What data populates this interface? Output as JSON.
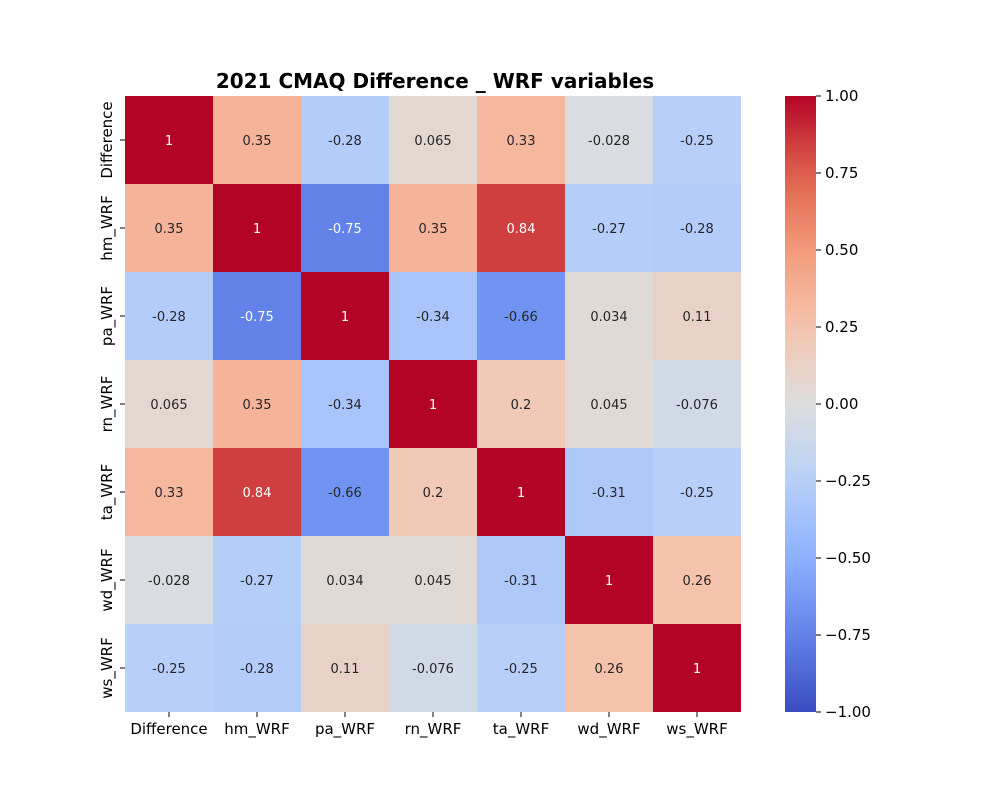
{
  "chart_data": {
    "type": "heatmap",
    "title": "2021 CMAQ Difference _ WRF variables",
    "xlabel": "",
    "ylabel": "",
    "x_categories": [
      "Difference",
      "hm_WRF",
      "pa_WRF",
      "rn_WRF",
      "ta_WRF",
      "wd_WRF",
      "ws_WRF"
    ],
    "y_categories": [
      "Difference",
      "hm_WRF",
      "pa_WRF",
      "rn_WRF",
      "ta_WRF",
      "wd_WRF",
      "ws_WRF"
    ],
    "values": [
      [
        1,
        0.35,
        -0.28,
        0.065,
        0.33,
        -0.028,
        -0.25
      ],
      [
        0.35,
        1,
        -0.75,
        0.35,
        0.84,
        -0.27,
        -0.28
      ],
      [
        -0.28,
        -0.75,
        1,
        -0.34,
        -0.66,
        0.034,
        0.11
      ],
      [
        0.065,
        0.35,
        -0.34,
        1,
        0.2,
        0.045,
        -0.076
      ],
      [
        0.33,
        0.84,
        -0.66,
        0.2,
        1,
        -0.31,
        -0.25
      ],
      [
        -0.028,
        -0.27,
        0.034,
        0.045,
        -0.31,
        1,
        0.26
      ],
      [
        -0.25,
        -0.28,
        0.11,
        -0.076,
        -0.25,
        0.26,
        1
      ]
    ],
    "annotations": [
      [
        "1",
        "0.35",
        "-0.28",
        "0.065",
        "0.33",
        "-0.028",
        "-0.25"
      ],
      [
        "0.35",
        "1",
        "-0.75",
        "0.35",
        "0.84",
        "-0.27",
        "-0.28"
      ],
      [
        "-0.28",
        "-0.75",
        "1",
        "-0.34",
        "-0.66",
        "0.034",
        "0.11"
      ],
      [
        "0.065",
        "0.35",
        "-0.34",
        "1",
        "0.2",
        "0.045",
        "-0.076"
      ],
      [
        "0.33",
        "0.84",
        "-0.66",
        "0.2",
        "1",
        "-0.31",
        "-0.25"
      ],
      [
        "-0.028",
        "-0.27",
        "0.034",
        "0.045",
        "-0.31",
        "1",
        "0.26"
      ],
      [
        "-0.25",
        "-0.28",
        "0.11",
        "-0.076",
        "-0.25",
        "0.26",
        "1"
      ]
    ],
    "colorscale": "coolwarm",
    "vmin": -1.0,
    "vmax": 1.0,
    "colorbar_ticks": [
      "1.00",
      "0.75",
      "0.50",
      "0.25",
      "0.00",
      "−0.25",
      "−0.50",
      "−0.75",
      "−1.00"
    ],
    "colorbar_tick_values": [
      1.0,
      0.75,
      0.5,
      0.25,
      0.0,
      -0.25,
      -0.5,
      -0.75,
      -1.0
    ],
    "grid": false,
    "legend": "colorbar-right"
  }
}
